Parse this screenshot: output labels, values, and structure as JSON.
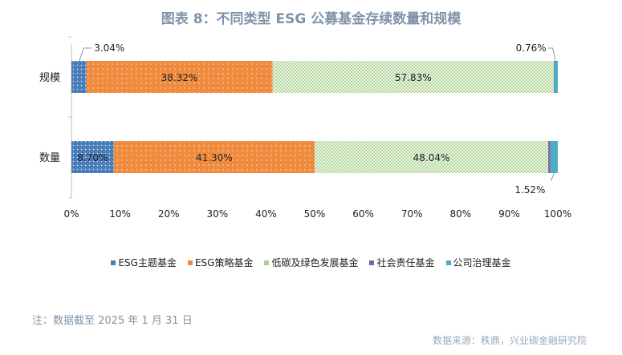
{
  "title": "图表 8：不同类型 ESG 公募基金存续数量和规模",
  "note": "注：数据截至 2025 年 1 月 31 日",
  "source": "数据来源：秩鼎，兴业碳金融研究院",
  "chart_data": {
    "type": "bar",
    "orientation": "horizontal",
    "stacked": "percent",
    "categories": [
      "规模",
      "数量"
    ],
    "series": [
      {
        "name": "ESG主题基金",
        "values": [
          3.04,
          8.7
        ],
        "labels": [
          "3.04%",
          "8.70%"
        ],
        "color": "#4a7ebb",
        "pattern": "dots"
      },
      {
        "name": "ESG策略基金",
        "values": [
          38.32,
          41.3
        ],
        "labels": [
          "38.32%",
          "41.30%"
        ],
        "color": "#f08a3c",
        "pattern": "dots"
      },
      {
        "name": "低碳及绿色发展基金",
        "values": [
          57.83,
          48.04
        ],
        "labels": [
          "57.83%",
          "48.04%"
        ],
        "color": "#a9d18e",
        "pattern": "crosshatch"
      },
      {
        "name": "社会责任基金",
        "values": [
          0.05,
          0.44
        ],
        "labels": [
          "",
          ""
        ],
        "color": "#8064a2",
        "pattern": "solid"
      },
      {
        "name": "公司治理基金",
        "values": [
          0.76,
          1.52
        ],
        "labels": [
          "0.76%",
          "1.52%"
        ],
        "color": "#4bacc6",
        "pattern": "solid"
      }
    ],
    "xlim": [
      0,
      100
    ],
    "xticks": [
      "0%",
      "10%",
      "20%",
      "30%",
      "40%",
      "50%",
      "60%",
      "70%",
      "80%",
      "90%",
      "100%"
    ],
    "legend": "bottom",
    "grid": false
  }
}
